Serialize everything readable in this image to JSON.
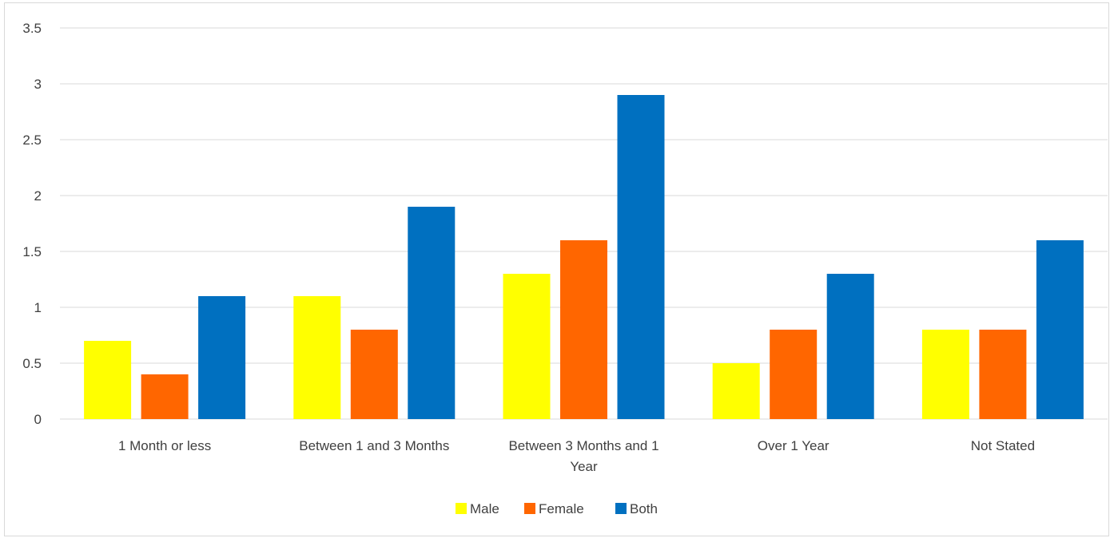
{
  "chart_data": {
    "type": "bar",
    "title": "",
    "xlabel": "",
    "ylabel": "",
    "categories": [
      [
        "1 Month or less"
      ],
      [
        "Between 1 and 3 Months"
      ],
      [
        "Between 3 Months and 1",
        "Year"
      ],
      [
        "Over 1 Year"
      ],
      [
        "Not Stated"
      ]
    ],
    "series": [
      {
        "name": "Male",
        "color": "#ffff00",
        "values": [
          0.7,
          1.1,
          1.3,
          0.5,
          0.8
        ]
      },
      {
        "name": "Female",
        "color": "#ff6600",
        "values": [
          0.4,
          0.8,
          1.6,
          0.8,
          0.8
        ]
      },
      {
        "name": "Both",
        "color": "#0070c0",
        "values": [
          1.1,
          1.9,
          2.9,
          1.3,
          1.6
        ]
      }
    ],
    "ylim": [
      0,
      3.5
    ],
    "yticks": [
      "0",
      "0.5",
      "1",
      "1.5",
      "2",
      "2.5",
      "3",
      "3.5"
    ],
    "grid": true,
    "legend_position": "bottom"
  }
}
